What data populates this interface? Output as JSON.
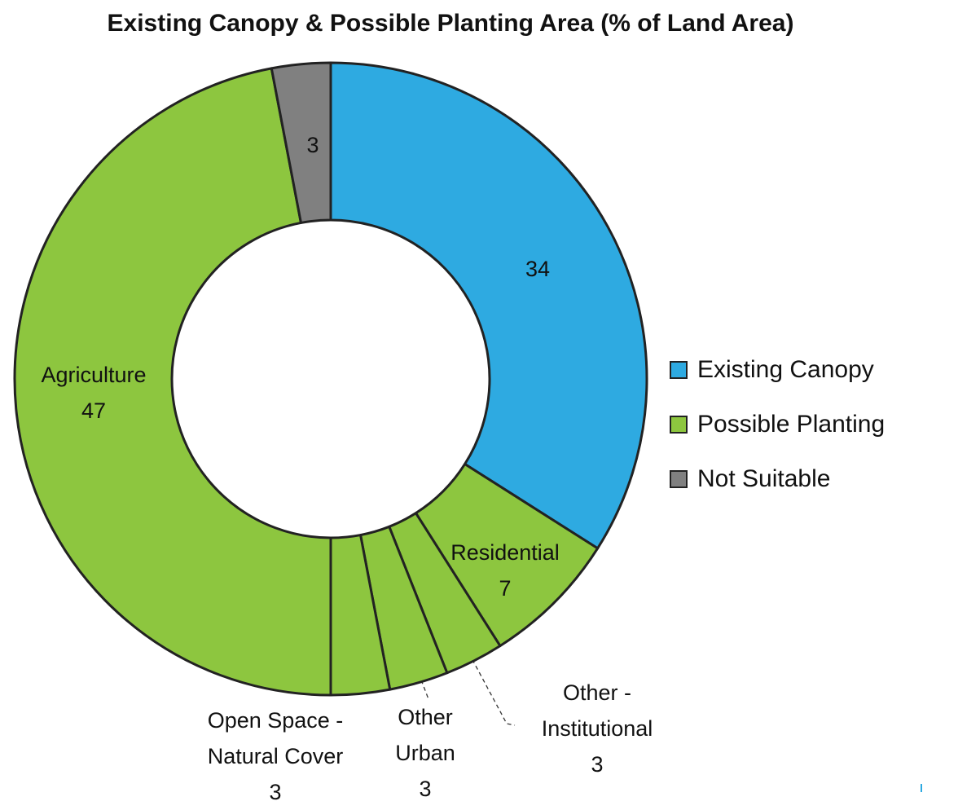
{
  "chart_data": {
    "type": "donut",
    "title": "Existing Canopy & Possible Planting Area (% of Land Area)",
    "categories": [
      null,
      "Residential",
      "Other - Institutional",
      "Other Urban",
      "Open Space - Natural Cover",
      "Agriculture",
      null
    ],
    "values": [
      34,
      7,
      3,
      3,
      3,
      47,
      3
    ],
    "colors": [
      "#2eaae1",
      "#8dc63f",
      "#8dc63f",
      "#8dc63f",
      "#8dc63f",
      "#8dc63f",
      "#808080"
    ],
    "legend": [
      {
        "name": "Existing Canopy",
        "color": "#2eaae1"
      },
      {
        "name": "Possible Planting",
        "color": "#8dc63f"
      },
      {
        "name": "Not Suitable",
        "color": "#808080"
      }
    ]
  }
}
